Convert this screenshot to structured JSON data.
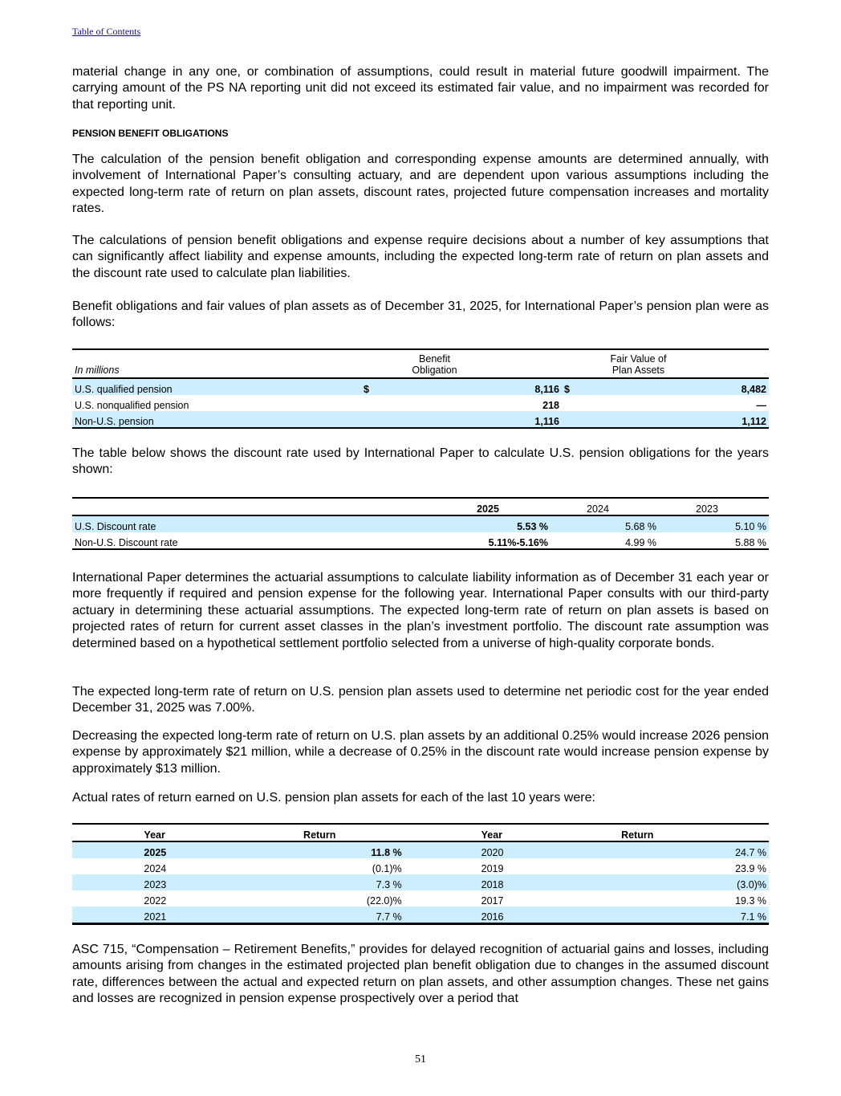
{
  "header": {
    "toc_link": "Table of Contents"
  },
  "paragraphs": {
    "p1": "material change in any one, or combination of assumptions, could result in material future goodwill impairment. The carrying amount of the PS NA reporting unit did not exceed its estimated fair value, and no impairment was recorded for that reporting unit.",
    "heading": "PENSION BENEFIT OBLIGATIONS",
    "p2": "The calculation of the pension benefit obligation and corresponding expense amounts are determined annually, with involvement of International Paper’s consulting actuary, and are dependent upon various assumptions including the expected long-term rate of return on plan assets, discount rates, projected future compensation increases and mortality rates.",
    "p3": "The calculations of pension benefit obligations and expense require decisions about a number of key assumptions that can significantly affect liability and expense amounts, including the expected long-term rate of return on plan assets and the discount rate used to calculate plan liabilities.",
    "p4": "Benefit obligations and fair values of plan assets as of December 31, 2025, for International Paper’s pension plan were as follows:",
    "p5": "The table below shows the discount rate used by International Paper to calculate U.S. pension obligations for the years shown:",
    "p6": "International Paper determines the actuarial assumptions to calculate liability information as of December 31 each year or more frequently if required and pension expense for the following year. International Paper consults with our third-party actuary in determining these actuarial assumptions. The expected long-term rate of return on plan assets is based on projected rates of return for current asset classes in the plan’s investment portfolio. The discount rate assumption was determined based on a hypothetical settlement portfolio selected from a universe of high-quality corporate bonds.",
    "p7": "The expected long-term rate of return on U.S. pension plan assets used to determine net periodic cost for the year ended December 31, 2025 was 7.00%.",
    "p8": "Decreasing the expected long-term rate of return on U.S. plan assets by an additional 0.25% would increase 2026 pension expense by approximately $21 million, while a decrease of 0.25% in the discount rate would increase pension expense by approximately $13 million.",
    "p9": "Actual rates of return earned on U.S. pension plan assets for each of the last 10 years were:",
    "p10": "ASC 715, “Compensation – Retirement Benefits,” provides for delayed recognition of actuarial gains and losses, including amounts arising from changes in the estimated projected plan benefit obligation due to changes in the assumed discount rate, differences between the actual and expected return on plan assets, and other assumption changes. These net gains and losses are recognized in pension expense prospectively over a period that"
  },
  "obligations_table": {
    "unit_label": "In millions",
    "col1_line1": "Benefit",
    "col1_line2": "Obligation",
    "col2_line1": "Fair Value of",
    "col2_line2": "Plan Assets",
    "rows": [
      {
        "label": "U.S. qualified pension",
        "cur1": "$",
        "obligation": "8,116",
        "cur2": "$",
        "assets": "8,482"
      },
      {
        "label": "U.S. nonqualified pension",
        "cur1": "",
        "obligation": "218",
        "cur2": "",
        "assets": "—"
      },
      {
        "label": "Non-U.S. pension",
        "cur1": "",
        "obligation": "1,116",
        "cur2": "",
        "assets": "1,112"
      }
    ]
  },
  "discount_table": {
    "years": [
      "2025",
      "2024",
      "2023"
    ],
    "rows": [
      {
        "label": "U.S. Discount rate",
        "values": [
          "5.53 %",
          "5.68 %",
          "5.10 %"
        ]
      },
      {
        "label": "Non-U.S. Discount rate",
        "values": [
          "5.11%-5.16%",
          "4.99 %",
          "5.88 %"
        ]
      }
    ]
  },
  "returns_table": {
    "headers": [
      "Year",
      "Return",
      "Year",
      "Return"
    ],
    "rows": [
      {
        "y1": "2025",
        "r1": "11.8 %",
        "y2": "2020",
        "r2": "24.7 %"
      },
      {
        "y1": "2024",
        "r1": "(0.1)%",
        "y2": "2019",
        "r2": "23.9 %"
      },
      {
        "y1": "2023",
        "r1": "7.3 %",
        "y2": "2018",
        "r2": "(3.0)%"
      },
      {
        "y1": "2022",
        "r1": "(22.0)%",
        "y2": "2017",
        "r2": "19.3 %"
      },
      {
        "y1": "2021",
        "r1": "7.7 %",
        "y2": "2016",
        "r2": "7.1 %"
      }
    ]
  },
  "footer": {
    "page_number": "51"
  },
  "colors": {
    "row_shade": "#cceeff",
    "link": "#1a0dab"
  }
}
